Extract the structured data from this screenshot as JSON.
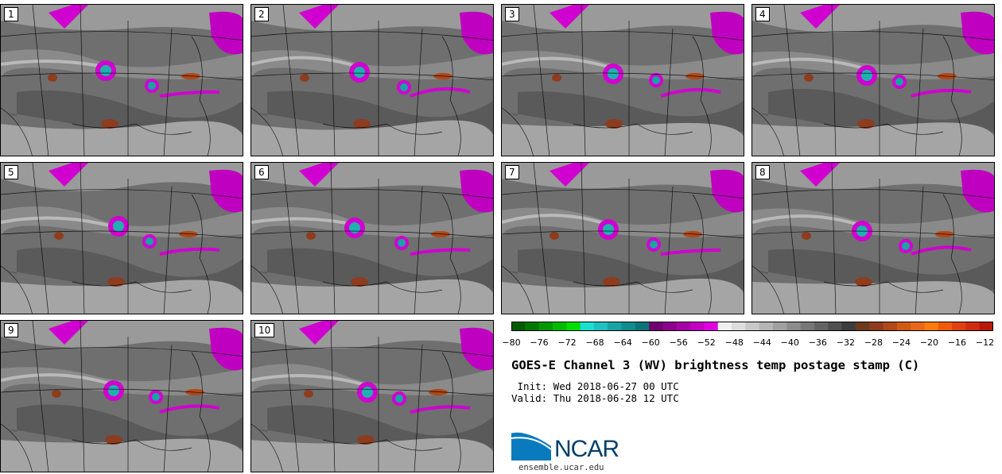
{
  "panels": [
    {
      "number": "1"
    },
    {
      "number": "2"
    },
    {
      "number": "3"
    },
    {
      "number": "4"
    },
    {
      "number": "5"
    },
    {
      "number": "6"
    },
    {
      "number": "7"
    },
    {
      "number": "8"
    },
    {
      "number": "9"
    },
    {
      "number": "10"
    }
  ],
  "colorbar": {
    "ticks": [
      "−80",
      "−76",
      "−72",
      "−68",
      "−64",
      "−60",
      "−56",
      "−52",
      "−48",
      "−44",
      "−40",
      "−36",
      "−32",
      "−28",
      "−24",
      "−20",
      "−16",
      "−12"
    ],
    "colors": [
      "#005a00",
      "#007800",
      "#009a00",
      "#00bb00",
      "#00dd00",
      "#19e0cf",
      "#20c0c0",
      "#17a4a4",
      "#108c8c",
      "#0a7575",
      "#700070",
      "#8c008c",
      "#a800a8",
      "#c400c4",
      "#e000e0",
      "#f0f0f0",
      "#dddddd",
      "#c8c8c8",
      "#b4b4b4",
      "#a0a0a0",
      "#8c8c8c",
      "#787878",
      "#646464",
      "#505050",
      "#3c3c3c",
      "#6e3a1e",
      "#8e3c1e",
      "#b04818",
      "#d05a14",
      "#e8681a",
      "#ff7a0a",
      "#f05a0a",
      "#e04010",
      "#d02a10",
      "#b81a0a"
    ]
  },
  "title": "GOES-E Channel 3 (WV) brightness temp postage stamp (C)",
  "init_line": " Init: Wed 2018-06-27 00 UTC",
  "valid_line": "Valid: Thu 2018-06-28 12 UTC",
  "logo": {
    "text": "NCAR",
    "url": "ensemble.ucar.edu"
  }
}
